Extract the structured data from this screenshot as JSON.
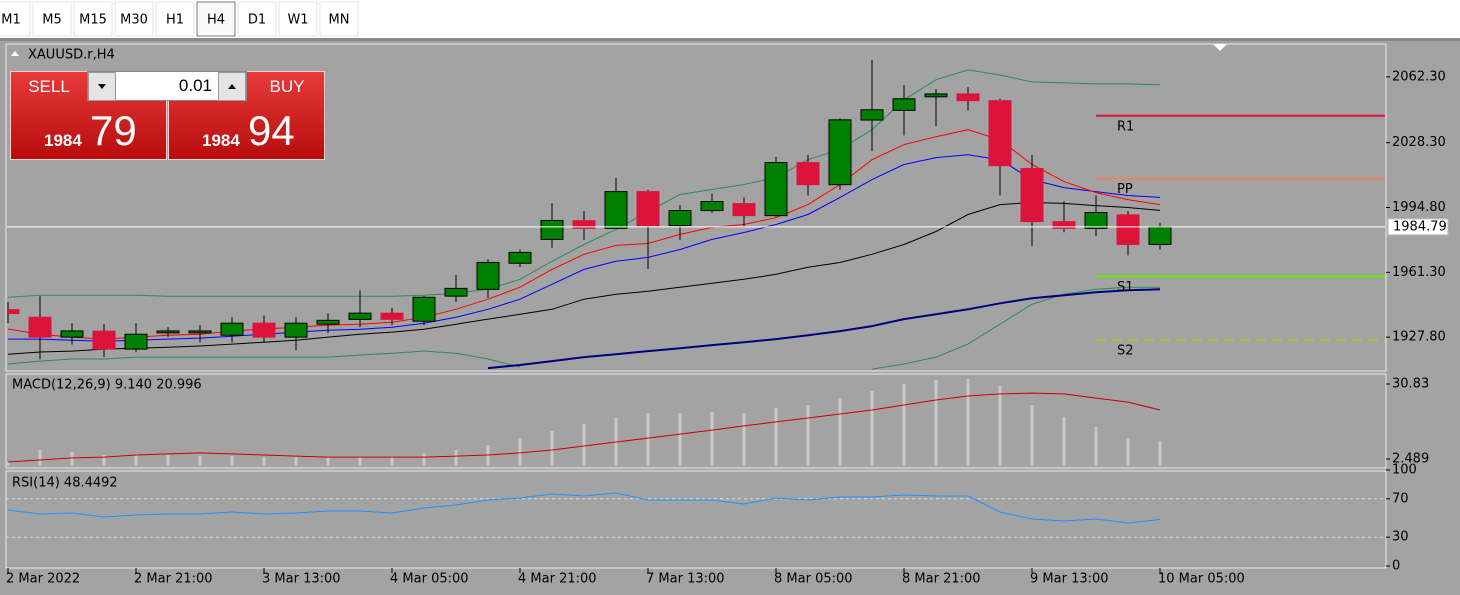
{
  "toolbar": {
    "timeframes": [
      "M1",
      "M5",
      "M15",
      "M30",
      "H1",
      "H4",
      "D1",
      "W1",
      "MN"
    ],
    "selected": "H4"
  },
  "trade_panel": {
    "sell_label": "SELL",
    "buy_label": "BUY",
    "volume": "0.01",
    "bid_big": "1984",
    "bid_small": "79",
    "ask_big": "1984",
    "ask_small": "94"
  },
  "chart_data": [
    {
      "type": "candlestick",
      "title": "XAUUSD.r,H4",
      "categories": [
        "2 Mar 2022",
        null,
        null,
        null,
        "2 Mar 21:00",
        null,
        null,
        null,
        "3 Mar 13:00",
        null,
        null,
        null,
        "4 Mar 05:00",
        null,
        null,
        null,
        "4 Mar 21:00",
        null,
        null,
        null,
        "7 Mar 13:00",
        null,
        null,
        null,
        "8 Mar 05:00",
        null,
        null,
        null,
        "8 Mar 21:00",
        null,
        null,
        null,
        "9 Mar 13:00",
        null,
        null,
        null,
        "10 Mar 05:00"
      ],
      "open": [
        1942,
        1938.1,
        1927.8,
        1930.9,
        1921.6,
        1930,
        1930,
        1928.8,
        1935,
        1927.8,
        1934.5,
        1937,
        1940.2,
        1936,
        1949,
        1952.5,
        1966,
        1978.3,
        1988,
        1984,
        2003,
        1985.5,
        1993.2,
        1996.8,
        1990.6,
        2018,
        2006.6,
        2040,
        2045,
        2052,
        2053.5,
        2050,
        2015,
        1987.5,
        1984,
        1991,
        1975.7
      ],
      "high": [
        1946,
        1949,
        1935,
        1934.5,
        1935,
        1933,
        1934,
        1938,
        1939,
        1938,
        1940,
        1952,
        1943,
        1949,
        1960,
        1968,
        1973,
        1997,
        1993,
        2010,
        2004,
        1996,
        2002,
        2000,
        2021,
        2022,
        2041,
        2071,
        2058,
        2056,
        2057,
        2051,
        2022,
        1998,
        2001,
        1993,
        1987
      ],
      "low": [
        1935,
        1916.4,
        1924,
        1917.5,
        1920,
        1928,
        1925,
        1925,
        1925,
        1921,
        1930,
        1933,
        1934,
        1934,
        1946,
        1948,
        1964,
        1974,
        1978,
        1984,
        1963,
        1978,
        1992,
        1985,
        1990,
        2001,
        2004,
        2024,
        2032,
        2037,
        2045,
        2001,
        1975,
        1982,
        1980,
        1970,
        1973
      ],
      "close": [
        1940,
        1927.8,
        1931,
        1921.6,
        1929.3,
        1931,
        1931,
        1935,
        1927.8,
        1935,
        1936.5,
        1940.2,
        1937,
        1948.4,
        1953,
        1966.4,
        1971.6,
        1988.1,
        1984,
        2003,
        1985.5,
        1993.2,
        1997.9,
        1990.6,
        2018,
        2006.6,
        2040.1,
        2045.3,
        2051,
        2053.5,
        2050,
        2016.4,
        1987.5,
        1984,
        1992.2,
        1975.7,
        1984.79
      ],
      "up_color": "#008000",
      "down_color": "#dc143c",
      "ylim": [
        1910.3,
        2079.3
      ],
      "yticks": [
        {
          "value": 2062.3,
          "label": "2062.30"
        },
        {
          "value": 2028.3,
          "label": "2028.30"
        },
        {
          "value": 1994.8,
          "label": "1994.80"
        },
        {
          "value": 1961.3,
          "label": "1961.30"
        },
        {
          "value": 1927.8,
          "label": "1927.80"
        }
      ],
      "last_price": 1984.79,
      "lines": [
        {
          "color": "#2e8b57",
          "values": [
            1948.4,
            1949.4,
            1949.4,
            1949.4,
            1949.4,
            1948.9,
            1948.9,
            1948.9,
            1948.9,
            1948.9,
            1948.9,
            1948.9,
            1948.9,
            1949.4,
            1950.5,
            1952.5,
            1957.7,
            1967.0,
            1975.7,
            1983.5,
            1992.7,
            2001.5,
            2004.1,
            2006.7,
            2010.3,
            2019.5,
            2024.7,
            2035.0,
            2050.5,
            2060.8,
            2065.9,
            2063.3,
            2059.7,
            2059.2,
            2058.7,
            2058.7,
            2058.2
          ]
        },
        {
          "color": "#2e8b57",
          "values": [
            1913.9,
            1915.4,
            1916.5,
            1916.5,
            1917.5,
            1917.5,
            1917.5,
            1917.5,
            1917.5,
            1917.5,
            1917.5,
            1918.5,
            1919.5,
            1920.6,
            1919.5,
            1916.5,
            1912.3,
            null,
            null,
            null,
            null,
            null,
            null,
            null,
            null,
            null,
            null,
            1911.3,
            1913.9,
            1917.5,
            1924.2,
            1934.5,
            1944.8,
            1950.0,
            1952.5,
            1953.6,
            1953.6
          ]
        },
        {
          "color": "#000000",
          "values": [
            1919.0,
            1920.1,
            1920.6,
            1921.6,
            1922.1,
            1922.6,
            1923.2,
            1924.2,
            1925.2,
            1926.2,
            1927.8,
            1929.3,
            1930.4,
            1931.9,
            1934.5,
            1937.1,
            1939.6,
            1942.2,
            1947.4,
            1950.0,
            1951.5,
            1953.6,
            1955.6,
            1957.7,
            1960.3,
            1963.9,
            1966.4,
            1970.6,
            1975.7,
            1982.4,
            1991.2,
            1996.3,
            1997.4,
            1996.9,
            1995.8,
            1994.8,
            1993.3
          ]
        },
        {
          "color": "#0000ff",
          "values": [
            1926.8,
            1926.8,
            1926.2,
            1925.7,
            1926.2,
            1926.8,
            1927.3,
            1928.3,
            1929.3,
            1930.4,
            1931.4,
            1931.9,
            1932.9,
            1935.0,
            1938.1,
            1942.2,
            1947.4,
            1955.1,
            1962.8,
            1967.0,
            1969.0,
            1973.1,
            1978.3,
            1981.9,
            1986.0,
            1991.2,
            2000.0,
            2009.2,
            2017.0,
            2020.6,
            2022.1,
            2019.5,
            2009.2,
            2005.1,
            2003.0,
            2001.0,
            2000.0
          ]
        },
        {
          "color": "#ff0000",
          "values": [
            1932.0,
            1929.3,
            1927.8,
            1926.8,
            1927.8,
            1928.8,
            1929.3,
            1930.9,
            1932.0,
            1932.9,
            1934.0,
            1934.5,
            1935.5,
            1938.1,
            1942.2,
            1947.4,
            1953.6,
            1962.8,
            1970.6,
            1975.2,
            1976.2,
            1980.9,
            1984.5,
            1986.0,
            1989.6,
            1996.3,
            2006.7,
            2019.5,
            2027.3,
            2031.4,
            2035.0,
            2029.8,
            2017.0,
            2008.2,
            2002.5,
            1998.9,
            1996.3
          ]
        },
        {
          "color": "#000080",
          "width": 2,
          "values": [
            null,
            null,
            null,
            null,
            null,
            null,
            null,
            null,
            null,
            null,
            null,
            null,
            null,
            null,
            null,
            1911.8,
            1913.4,
            1915.4,
            1917.5,
            1919.0,
            1920.6,
            1922.1,
            1923.7,
            1925.2,
            1926.8,
            1928.8,
            1930.9,
            1933.5,
            1937.1,
            1939.6,
            1942.2,
            1945.3,
            1947.9,
            1949.4,
            1951.0,
            1952.0,
            1952.5
          ]
        }
      ],
      "levels": [
        {
          "name": "R1",
          "value": 2042.2,
          "color": "#dc143c",
          "style": "solid"
        },
        {
          "name": "PP",
          "value": 2009.7,
          "color": "#f08060",
          "style": "solid"
        },
        {
          "name": "S1",
          "value": 1959.2,
          "color": "#66ee00",
          "style": "solid"
        },
        {
          "name": "S2",
          "value": 1926.2,
          "color": "#9acd32",
          "style": "dashed"
        }
      ]
    },
    {
      "type": "macd",
      "title": "MACD(12,26,9) 9.140 20.996",
      "ylim": [
        -0.91,
        34.61
      ],
      "yticks": [
        30.83,
        2.489
      ],
      "bar_color": "#c8c8c8",
      "signal_color": "#cc0000",
      "values": [
        1.4,
        5.9,
        5.1,
        4.0,
        4.0,
        4.0,
        3.6,
        3.6,
        3.2,
        3.2,
        3.2,
        3.2,
        3.6,
        4.8,
        5.9,
        7.8,
        10.4,
        13.1,
        15.7,
        18.0,
        19.9,
        19.9,
        20.3,
        19.9,
        21.8,
        22.9,
        25.5,
        28.2,
        30.8,
        32.3,
        32.7,
        30.1,
        22.9,
        18.4,
        14.6,
        10.4,
        9.14
      ],
      "signal": [
        1.4,
        2.1,
        2.9,
        3.2,
        4.0,
        4.4,
        4.8,
        4.4,
        4.0,
        3.6,
        3.2,
        3.2,
        3.2,
        3.2,
        3.6,
        4.0,
        4.8,
        5.9,
        7.4,
        8.9,
        10.4,
        11.9,
        13.4,
        15.0,
        16.5,
        18.0,
        19.5,
        21.0,
        22.9,
        24.8,
        26.3,
        27.1,
        27.4,
        27.1,
        25.5,
        24.0,
        21.0
      ]
    },
    {
      "type": "rsi",
      "title": "RSI(14) 48.4492",
      "ylim": [
        0,
        100
      ],
      "yticks": [
        100,
        70,
        30,
        0
      ],
      "levels": [
        70,
        30
      ],
      "color": "#1e90ff",
      "values": [
        58.3,
        54.2,
        55.2,
        51.0,
        53.1,
        54.2,
        54.2,
        56.3,
        54.2,
        55.2,
        57.3,
        57.3,
        55.2,
        60.4,
        63.5,
        68.8,
        70.8,
        75.0,
        72.9,
        76.0,
        68.8,
        68.8,
        68.8,
        64.6,
        70.8,
        68.8,
        71.9,
        71.9,
        74.0,
        72.9,
        72.9,
        56.3,
        49.0,
        46.9,
        49.0,
        44.8,
        48.4
      ]
    }
  ]
}
